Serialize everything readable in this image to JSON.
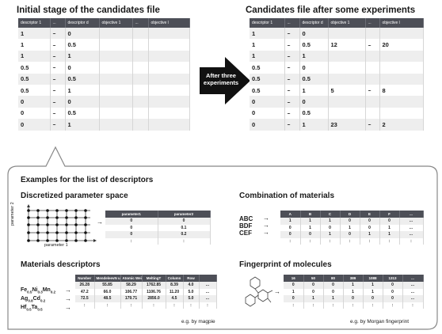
{
  "initial": {
    "title": "Initial stage of the candidates file",
    "headers": [
      "descriptor 1",
      "...",
      "descriptor d",
      "objective 1",
      "...",
      "objective l"
    ],
    "rows": [
      [
        "1",
        "...",
        "0",
        "",
        "",
        ""
      ],
      [
        "1",
        "...",
        "0.5",
        "",
        "",
        ""
      ],
      [
        "1",
        "...",
        "1",
        "",
        "",
        ""
      ],
      [
        "0.5",
        "...",
        "0",
        "",
        "",
        ""
      ],
      [
        "0.5",
        "...",
        "0.5",
        "",
        "",
        ""
      ],
      [
        "0.5",
        "...",
        "1",
        "",
        "",
        ""
      ],
      [
        "0",
        "...",
        "0",
        "",
        "",
        ""
      ],
      [
        "0",
        "...",
        "0.5",
        "",
        "",
        ""
      ],
      [
        "0",
        "...",
        "1",
        "",
        "",
        ""
      ]
    ]
  },
  "after": {
    "title": "Candidates file after some experiments",
    "headers": [
      "descriptor 1",
      "...",
      "descriptor d",
      "objective 1",
      "...",
      "objective l"
    ],
    "rows": [
      [
        "1",
        "...",
        "0",
        "",
        "",
        ""
      ],
      [
        "1",
        "...",
        "0.5",
        "12",
        "...",
        "20"
      ],
      [
        "1",
        "...",
        "1",
        "",
        "",
        ""
      ],
      [
        "0.5",
        "...",
        "0",
        "",
        "",
        ""
      ],
      [
        "0.5",
        "...",
        "0.5",
        "",
        "",
        ""
      ],
      [
        "0.5",
        "...",
        "1",
        "5",
        "...",
        "8"
      ],
      [
        "0",
        "...",
        "0",
        "",
        "",
        ""
      ],
      [
        "0",
        "...",
        "0.5",
        "",
        "",
        ""
      ],
      [
        "0",
        "...",
        "1",
        "23",
        "...",
        "2"
      ]
    ]
  },
  "arrow_label": "After three experiments",
  "examples": {
    "title": "Examples for the list of descriptors",
    "discretized": {
      "title": "Discretized parameter space",
      "axis_y": "parameter 2",
      "axis_x": "parameter 1",
      "headers": [
        "parameter1",
        "parameter2"
      ],
      "rows": [
        [
          "0",
          "0"
        ],
        [
          "0",
          "0.1"
        ],
        [
          "0",
          "0.2"
        ],
        [
          ":",
          ":"
        ]
      ]
    },
    "combination": {
      "title": "Combination of materials",
      "materials": [
        "ABC",
        "BDF",
        "CEF"
      ],
      "headers": [
        "A",
        "B",
        "C",
        "D",
        "E",
        "F",
        "..."
      ],
      "rows": [
        [
          "1",
          "1",
          "1",
          "0",
          "0",
          "0",
          "..."
        ],
        [
          "0",
          "1",
          "0",
          "1",
          "0",
          "1",
          "..."
        ],
        [
          "0",
          "0",
          "1",
          "0",
          "1",
          "1",
          "..."
        ],
        [
          ":",
          ":",
          ":",
          ":",
          ":",
          ":",
          ":"
        ]
      ]
    },
    "materials": {
      "title": "Materials descriptors",
      "headers": [
        "Number",
        "MendeleevN umber",
        "Atomic Weight",
        "MeltingT",
        "Column",
        "Row",
        ""
      ],
      "rows": [
        [
          "26.28",
          "55.85",
          "58.29",
          "1762.85",
          "8.39",
          "4.0",
          "..."
        ],
        [
          "47.2",
          "66.0",
          "106.77",
          "1106.76",
          "11.20",
          "5.0",
          "..."
        ],
        [
          "72.5",
          "48.5",
          "179.71",
          "2856.0",
          "4.5",
          "5.0",
          "..."
        ],
        [
          ":",
          ":",
          ":",
          ":",
          ":",
          ":",
          ":"
        ]
      ],
      "note": "e.g. by magpie"
    },
    "fingerprint": {
      "title": "Fingerprint of molecules",
      "headers": [
        "16",
        "50",
        "80",
        "389",
        "1088",
        "1313",
        "..."
      ],
      "rows": [
        [
          "0",
          "0",
          "0",
          "1",
          "1",
          "0",
          "..."
        ],
        [
          "1",
          "0",
          "0",
          "1",
          "1",
          "0",
          "..."
        ],
        [
          "0",
          "1",
          "1",
          "0",
          "0",
          "0",
          "..."
        ],
        [
          ":",
          ":",
          ":",
          ":",
          ":",
          ":",
          ":"
        ]
      ],
      "note": "e.g. by Morgan fingerprint"
    }
  },
  "colors": {
    "header_bg": "#4d4f57",
    "row_shade": "#eeeeee",
    "arrow": "#111111",
    "callout_border": "#888888"
  }
}
